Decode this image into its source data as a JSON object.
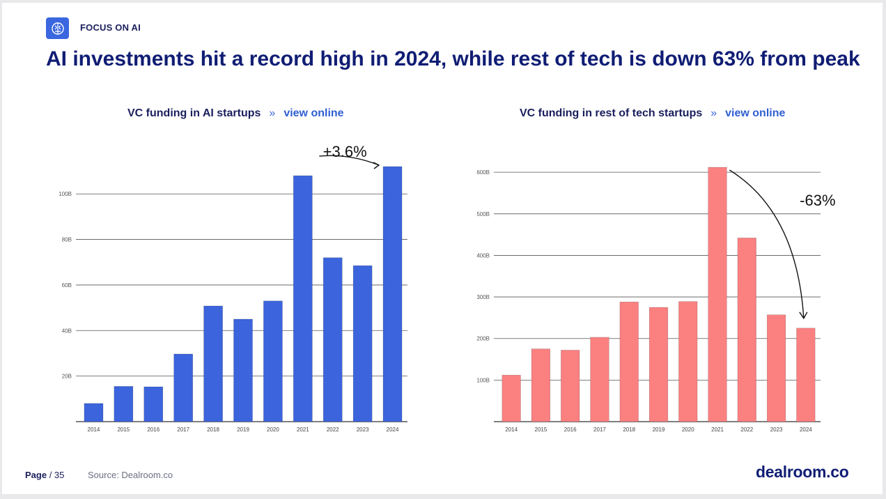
{
  "header": {
    "section_tag": "FOCUS ON AI",
    "headline": "AI investments hit a record high in 2024, while rest of tech is down 63% from peak"
  },
  "charts": [
    {
      "subtitle": "VC funding in AI startups",
      "separator": "»",
      "link": "view online"
    },
    {
      "subtitle": "VC funding in rest of tech startups",
      "separator": "»",
      "link": "view online"
    }
  ],
  "footer": {
    "page_label": "Page",
    "page_number": "/ 35",
    "source": "Source: Dealroom.co",
    "brand": "dealroom.co"
  },
  "colors": {
    "ai_bars": "#3c64dc",
    "tech_bars": "#fb8080",
    "title": "#101d74",
    "link": "#2f5fd2"
  },
  "chart_data": [
    {
      "type": "bar",
      "title": "VC funding in AI startups",
      "categories": [
        "2014",
        "2015",
        "2016",
        "2017",
        "2018",
        "2019",
        "2020",
        "2021",
        "2022",
        "2023",
        "2024"
      ],
      "values": [
        8,
        15.5,
        15.3,
        29.7,
        50.8,
        45,
        53,
        108,
        72,
        68.5,
        112
      ],
      "ylim": [
        0,
        112
      ],
      "yticks": [
        20,
        40,
        60,
        80,
        100
      ],
      "ytick_labels": [
        "20B",
        "40B",
        "60B",
        "80B",
        "100B"
      ],
      "grid": true,
      "bar_color": "#3c64dc",
      "annotation": {
        "text": "+3.6%",
        "from": "2021",
        "to": "2024"
      }
    },
    {
      "type": "bar",
      "title": "VC funding in rest of tech startups",
      "categories": [
        "2014",
        "2015",
        "2016",
        "2017",
        "2018",
        "2019",
        "2020",
        "2021",
        "2022",
        "2023",
        "2024"
      ],
      "values": [
        112,
        175,
        172,
        203,
        288,
        275,
        289,
        612,
        442,
        257,
        225
      ],
      "ylim": [
        0,
        612
      ],
      "yticks": [
        100,
        200,
        300,
        400,
        500,
        600
      ],
      "ytick_labels": [
        "100B",
        "200B",
        "300B",
        "400B",
        "500B",
        "600B"
      ],
      "grid": true,
      "bar_color": "#fb8080",
      "annotation": {
        "text": "-63%",
        "from": "2021",
        "to": "2024"
      }
    }
  ]
}
